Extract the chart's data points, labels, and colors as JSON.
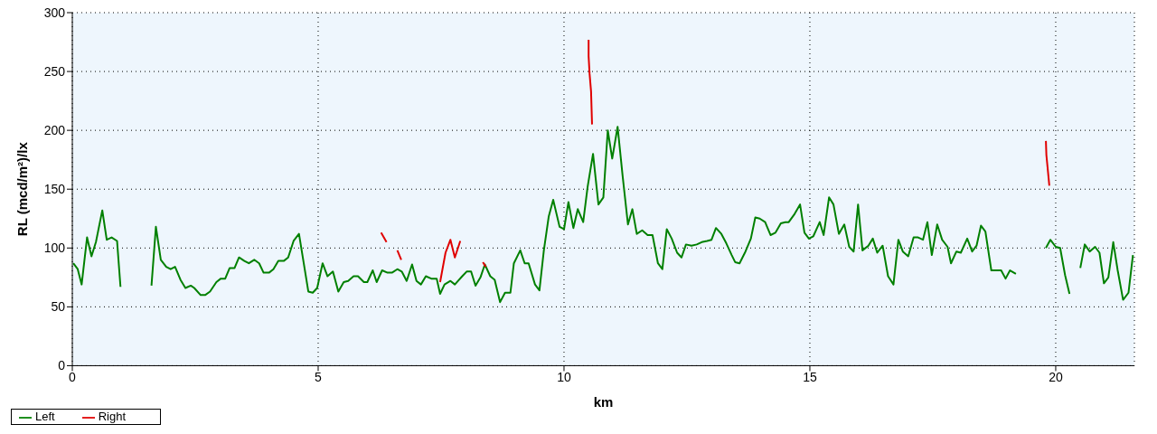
{
  "chart_data": {
    "type": "line",
    "xlabel": "km",
    "ylabel": "RL (mcd/m²)/lx",
    "xlim": [
      0,
      21.6
    ],
    "xticks": [
      0,
      5,
      10,
      15,
      20
    ],
    "ylim": [
      0,
      300
    ],
    "yticks": [
      0,
      50,
      100,
      150,
      200,
      250,
      300
    ],
    "grid": true,
    "legend": "bottom left",
    "marker": "none",
    "line_style": "solid",
    "series": [
      {
        "name": "Left",
        "color": "#008000",
        "x": [
          0.02,
          0.11,
          0.19,
          0.3,
          0.39,
          0.48,
          0.61,
          0.7,
          0.8,
          0.91,
          0.98,
          1.3,
          1.61,
          1.7,
          1.8,
          1.91,
          2.0,
          2.09,
          2.2,
          2.3,
          2.41,
          2.48,
          2.61,
          2.7,
          2.8,
          2.93,
          3.02,
          3.11,
          3.2,
          3.3,
          3.39,
          3.5,
          3.59,
          3.7,
          3.8,
          3.89,
          4.0,
          4.09,
          4.19,
          4.3,
          4.39,
          4.5,
          4.61,
          4.8,
          4.89,
          4.98,
          5.09,
          5.19,
          5.3,
          5.41,
          5.52,
          5.61,
          5.72,
          5.81,
          5.93,
          6.0,
          6.11,
          6.19,
          6.3,
          6.41,
          6.5,
          6.61,
          6.7,
          6.8,
          6.91,
          7.0,
          7.09,
          7.19,
          7.3,
          7.41,
          7.48,
          7.57,
          7.69,
          7.78,
          7.93,
          8.02,
          8.11,
          8.2,
          8.3,
          8.39,
          8.5,
          8.59,
          8.7,
          8.8,
          8.91,
          8.98,
          9.11,
          9.2,
          9.28,
          9.41,
          9.5,
          9.59,
          9.69,
          9.78,
          9.91,
          10.0,
          10.09,
          10.19,
          10.28,
          10.39,
          10.48,
          10.59,
          10.7,
          10.8,
          10.89,
          10.98,
          11.09,
          11.19,
          11.3,
          11.39,
          11.48,
          11.59,
          11.7,
          11.8,
          11.91,
          12.0,
          12.09,
          12.19,
          12.3,
          12.39,
          12.48,
          12.59,
          12.7,
          12.8,
          12.91,
          13.0,
          13.09,
          13.2,
          13.3,
          13.41,
          13.48,
          13.57,
          13.69,
          13.8,
          13.89,
          13.98,
          14.09,
          14.2,
          14.3,
          14.41,
          14.5,
          14.57,
          14.69,
          14.8,
          14.89,
          14.98,
          15.07,
          15.2,
          15.28,
          15.39,
          15.48,
          15.59,
          15.7,
          15.8,
          15.89,
          15.98,
          16.07,
          16.19,
          16.28,
          16.37,
          16.48,
          16.59,
          16.7,
          16.8,
          16.89,
          17.0,
          17.11,
          17.2,
          17.3,
          17.39,
          17.48,
          17.59,
          17.69,
          17.8,
          17.87,
          17.98,
          18.07,
          18.2,
          18.3,
          18.39,
          18.48,
          18.57,
          18.69,
          18.78,
          18.89,
          18.98,
          19.07,
          19.19,
          19.5,
          19.8,
          19.89,
          20.0,
          20.09,
          20.19,
          20.28,
          20.4,
          20.5,
          20.59,
          20.69,
          20.8,
          20.89,
          20.98,
          21.07,
          21.17,
          21.26,
          21.37,
          21.48,
          21.57
        ],
        "values": [
          87,
          82,
          69,
          109,
          93,
          105,
          132,
          107,
          109,
          106,
          67,
          null,
          68,
          118,
          90,
          84,
          82,
          84,
          73,
          66,
          68,
          66,
          60,
          60,
          63,
          71,
          74,
          74,
          83,
          83,
          92,
          89,
          87,
          90,
          87,
          79,
          79,
          82,
          89,
          89,
          92,
          106,
          112,
          63,
          62,
          66,
          87,
          76,
          80,
          63,
          71,
          72,
          76,
          76,
          71,
          71,
          81,
          71,
          81,
          79,
          79,
          82,
          80,
          72,
          86,
          72,
          69,
          76,
          74,
          74,
          61,
          69,
          72,
          69,
          76,
          80,
          80,
          68,
          75,
          86,
          76,
          73,
          54,
          62,
          62,
          87,
          98,
          87,
          87,
          69,
          64,
          98,
          127,
          141,
          118,
          116,
          139,
          117,
          133,
          122,
          152,
          180,
          137,
          143,
          200,
          176,
          203,
          162,
          120,
          133,
          112,
          115,
          111,
          111,
          87,
          82,
          116,
          108,
          96,
          92,
          103,
          102,
          103,
          105,
          106,
          107,
          117,
          112,
          104,
          94,
          88,
          87,
          97,
          108,
          126,
          125,
          122,
          111,
          113,
          121,
          122,
          122,
          129,
          137,
          113,
          108,
          110,
          122,
          111,
          143,
          137,
          112,
          120,
          101,
          97,
          137,
          98,
          102,
          108,
          96,
          102,
          76,
          69,
          107,
          97,
          93,
          109,
          109,
          107,
          122,
          94,
          120,
          107,
          101,
          87,
          97,
          96,
          108,
          97,
          102,
          119,
          114,
          81,
          81,
          81,
          74,
          81,
          78,
          null,
          100,
          107,
          101,
          100,
          77,
          61,
          null,
          83,
          103,
          97,
          101,
          96,
          70,
          75,
          105,
          81,
          56,
          62,
          94
        ]
      },
      {
        "name": "Right",
        "color": "#e00000",
        "x": [
          6.28,
          6.39,
          6.5,
          6.61,
          6.69,
          7.0,
          7.48,
          7.59,
          7.69,
          7.78,
          7.89,
          8.1,
          8.35,
          8.41,
          9.0,
          10.5,
          10.5,
          10.52,
          10.55,
          10.57,
          15.0,
          19.8,
          19.81,
          19.87
        ],
        "values": [
          113,
          105,
          null,
          98,
          90,
          null,
          71,
          96,
          107,
          92,
          106,
          null,
          88,
          84,
          null,
          277,
          263,
          248,
          233,
          205,
          null,
          191,
          179,
          153
        ]
      }
    ]
  }
}
